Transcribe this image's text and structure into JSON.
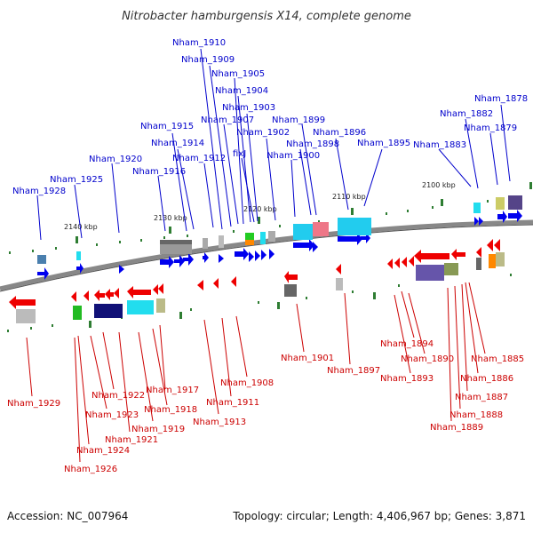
{
  "title": "Nitrobacter hamburgensis X14, complete genome",
  "footer": {
    "accession": "Accession: NC_007964",
    "topology": "Topology: circular; Length: 4,406,967 bp; Genes: 3,871"
  },
  "scale_labels": [
    "2140 kbp",
    "2130 kbp",
    "2120 kbp",
    "2110 kbp",
    "2100 kbp"
  ],
  "upper_genes": [
    "Nham_1910",
    "Nham_1909",
    "Nham_1905",
    "Nham_1904",
    "Nham_1903",
    "Nham_1907",
    "Nham_1915",
    "Nham_1902",
    "Nham_1899",
    "Nham_1896",
    "Nham_1898",
    "Nham_1914",
    "Nham_1895",
    "Nham_1920",
    "fixJ",
    "Nham_1912",
    "Nham_1900",
    "Nham_1916",
    "Nham_1925",
    "Nham_1928",
    "Nham_1878",
    "Nham_1882",
    "Nham_1879",
    "Nham_1883"
  ],
  "lower_genes": [
    "Nham_1929",
    "Nham_1922",
    "Nham_1917",
    "Nham_1923",
    "Nham_1918",
    "Nham_1921",
    "Nham_1919",
    "Nham_1924",
    "Nham_1926",
    "Nham_1913",
    "Nham_1911",
    "Nham_1908",
    "Nham_1901",
    "Nham_1897",
    "Nham_1894",
    "Nham_1890",
    "Nham_1893",
    "Nham_1885",
    "Nham_1886",
    "Nham_1887",
    "Nham_1888",
    "Nham_1889"
  ],
  "colors": {
    "forward": "#0000ee",
    "reverse": "#ee0000",
    "backbone": "#888888"
  }
}
